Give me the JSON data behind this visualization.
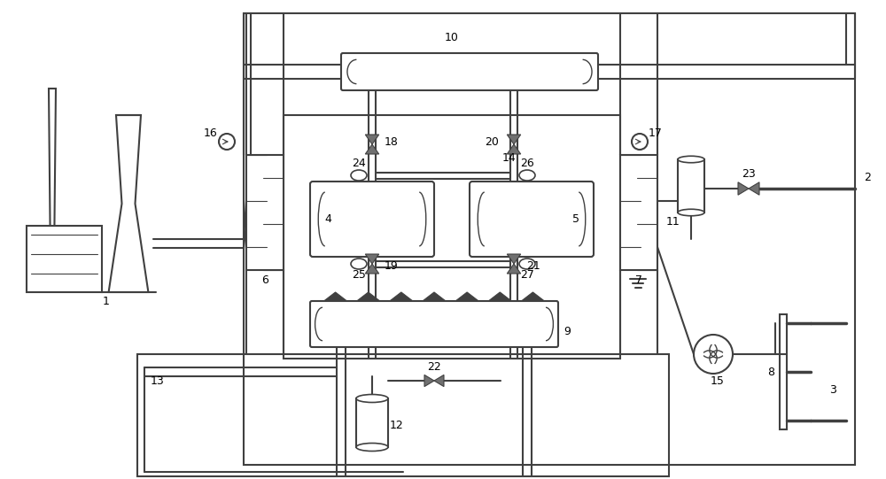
{
  "bg_color": "#ffffff",
  "lc": "#404040",
  "fc": "#707070",
  "figsize": [
    10.0,
    5.41
  ],
  "dpi": 100
}
